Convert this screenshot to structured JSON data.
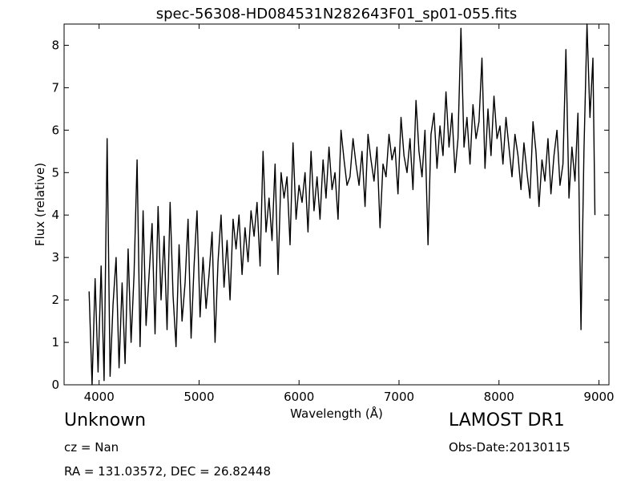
{
  "chart_data": {
    "type": "line",
    "title": "spec-56308-HD084531N282643F01_sp01-055.fits",
    "xlabel": "Wavelength (Å)",
    "ylabel": "Flux (relative)",
    "xlim": [
      3650,
      9100
    ],
    "ylim": [
      0,
      8.5
    ],
    "xticks": [
      4000,
      5000,
      6000,
      7000,
      8000,
      9000
    ],
    "yticks": [
      0,
      1,
      2,
      3,
      4,
      5,
      6,
      7,
      8
    ],
    "grid": false,
    "line_color": "#000000",
    "series": [
      {
        "x": [
          3900,
          3930,
          3960,
          3990,
          4020,
          4050,
          4080,
          4110,
          4140,
          4170,
          4200,
          4230,
          4260,
          4290,
          4320,
          4350,
          4380,
          4410,
          4440,
          4470,
          4500,
          4530,
          4560,
          4590,
          4620,
          4650,
          4680,
          4710,
          4740,
          4770,
          4800,
          4830,
          4860,
          4890,
          4920,
          4950,
          4980,
          5010,
          5040,
          5070,
          5100,
          5130,
          5160,
          5190,
          5220,
          5250,
          5280,
          5310,
          5340,
          5370,
          5400,
          5430,
          5460,
          5490,
          5520,
          5550,
          5580,
          5610,
          5640,
          5670,
          5700,
          5730,
          5760,
          5790,
          5820,
          5850,
          5880,
          5910,
          5940,
          5970,
          6000,
          6030,
          6060,
          6090,
          6120,
          6150,
          6180,
          6210,
          6240,
          6270,
          6300,
          6330,
          6360,
          6390,
          6420,
          6450,
          6480,
          6510,
          6540,
          6570,
          6600,
          6630,
          6660,
          6690,
          6720,
          6750,
          6780,
          6810,
          6840,
          6870,
          6900,
          6930,
          6960,
          6990,
          7020,
          7050,
          7080,
          7110,
          7140,
          7170,
          7200,
          7230,
          7260,
          7290,
          7320,
          7350,
          7380,
          7410,
          7440,
          7470,
          7500,
          7530,
          7560,
          7590,
          7620,
          7650,
          7680,
          7710,
          7740,
          7770,
          7800,
          7830,
          7860,
          7890,
          7920,
          7950,
          7980,
          8010,
          8040,
          8070,
          8100,
          8130,
          8160,
          8190,
          8220,
          8250,
          8280,
          8310,
          8340,
          8370,
          8400,
          8430,
          8460,
          8490,
          8520,
          8550,
          8580,
          8610,
          8640,
          8670,
          8700,
          8730,
          8760,
          8790,
          8820,
          8850,
          8880,
          8910,
          8940,
          8960
        ],
        "y": [
          2.2,
          0.0,
          2.5,
          0.3,
          2.8,
          0.1,
          5.8,
          0.2,
          1.9,
          3.0,
          0.4,
          2.4,
          0.5,
          3.2,
          1.0,
          2.6,
          5.3,
          0.9,
          4.1,
          1.4,
          2.6,
          3.8,
          1.2,
          4.2,
          2.0,
          3.5,
          1.3,
          4.3,
          2.1,
          0.9,
          3.3,
          1.5,
          2.4,
          3.9,
          1.1,
          2.8,
          4.1,
          1.6,
          3.0,
          1.8,
          2.6,
          3.6,
          1.0,
          2.9,
          4.0,
          2.3,
          3.4,
          2.0,
          3.9,
          3.2,
          4.0,
          2.6,
          3.7,
          2.9,
          4.1,
          3.5,
          4.3,
          2.8,
          5.5,
          3.6,
          4.4,
          3.4,
          5.2,
          2.6,
          5.0,
          4.4,
          4.9,
          3.3,
          5.7,
          3.9,
          4.7,
          4.3,
          5.0,
          3.6,
          5.5,
          4.1,
          4.9,
          3.9,
          5.3,
          4.4,
          5.6,
          4.6,
          5.0,
          3.9,
          6.0,
          5.3,
          4.7,
          4.9,
          5.8,
          5.2,
          4.7,
          5.5,
          4.2,
          5.9,
          5.3,
          4.8,
          5.6,
          3.7,
          5.2,
          4.9,
          5.9,
          5.3,
          5.6,
          4.5,
          6.3,
          5.4,
          5.0,
          5.8,
          4.6,
          6.7,
          5.5,
          4.9,
          6.0,
          3.3,
          5.9,
          6.4,
          5.1,
          6.1,
          5.4,
          6.9,
          5.6,
          6.4,
          5.0,
          5.8,
          8.4,
          5.6,
          6.3,
          5.2,
          6.6,
          5.8,
          6.2,
          7.7,
          5.1,
          6.5,
          5.4,
          6.8,
          5.8,
          6.1,
          5.2,
          6.3,
          5.6,
          4.9,
          5.9,
          5.4,
          4.6,
          5.7,
          5.0,
          4.4,
          6.2,
          5.5,
          4.2,
          5.3,
          4.8,
          5.8,
          4.5,
          5.4,
          6.0,
          4.7,
          5.2,
          7.9,
          4.4,
          5.6,
          4.8,
          6.4,
          1.3,
          5.5,
          8.5,
          6.3,
          7.7,
          4.0
        ]
      }
    ],
    "annotations": {
      "object_class": "Unknown",
      "cz": "cz = Nan",
      "radec": "RA = 131.03572, DEC = 26.82448",
      "survey": "LAMOST DR1",
      "obs_date": "Obs-Date:20130115"
    }
  }
}
